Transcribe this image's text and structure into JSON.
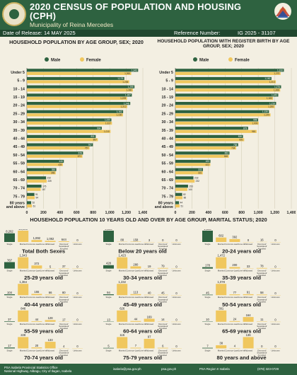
{
  "header": {
    "title": "2020 CENSUS OF POPULATION AND HOUSING (CPH)",
    "subtitle": "Municipality of Reina Mercedes",
    "release": "Date of Release: 14 MAY 2025",
    "ref_label": "Reference Number:",
    "ref_number": "IG 2025 - 31107"
  },
  "colors": {
    "male": "#2e6240",
    "female": "#f0c75e",
    "grid": "#cfc8b0",
    "header": "#2e6240"
  },
  "icons": {
    "left_logo": "psa-seal-icon",
    "right_logo": "bagong-pilipinas-logo-icon"
  },
  "chart_data": [
    {
      "type": "bar",
      "title": "HOUSEHOLD POPULATION BY AGE GROUP, SEX; 2020",
      "legend": [
        "Male",
        "Female"
      ],
      "legend_position": "top",
      "categories": [
        "Under 5",
        "5 - 9",
        "10 - 14",
        "15 - 19",
        "20 - 24",
        "25 - 29",
        "30 - 34",
        "35 - 39",
        "40 - 44",
        "45 - 49",
        "50 - 54",
        "55 - 59",
        "60 - 64",
        "65 - 69",
        "70 - 74",
        "75 - 79",
        "80 years and above"
      ],
      "series": [
        {
          "name": "Male",
          "values": [
            1343,
            1176,
            1299,
            1267,
            1248,
            1162,
            1020,
            904,
            831,
            797,
            678,
            446,
            355,
            232,
            176,
            91,
            52
          ]
        },
        {
          "name": "Female",
          "values": [
            1260,
            1236,
            1280,
            1209,
            1212,
            1160,
            1027,
            1010,
            857,
            757,
            671,
            435,
            348,
            239,
            167,
            94,
            61
          ]
        }
      ],
      "xlim": [
        0,
        1400
      ],
      "xticks": [
        0,
        200,
        400,
        600,
        800,
        1000,
        1200,
        1400
      ],
      "grid": true
    },
    {
      "type": "bar",
      "title": "HOUSEHOLD POPULATION WITH REGISTER BIRTH BY AGE GROUP, SEX; 2020",
      "legend": [
        "Male",
        "Female"
      ],
      "legend_position": "top",
      "categories": [
        "Under 5",
        "5 - 9",
        "10 - 14",
        "15 - 19",
        "20 - 24",
        "25 - 29",
        "30 - 34",
        "35 - 39",
        "40 - 44",
        "45 - 49",
        "50 - 54",
        "55 - 59",
        "60 - 64",
        "65 - 69",
        "70 - 74",
        "75 - 79",
        "80 years and above"
      ],
      "series": [
        {
          "name": "Male",
          "values": [
            1310,
            1160,
            1276,
            1242,
            1216,
            1130,
            998,
            878,
            816,
            758,
            653,
            423,
            333,
            218,
            153,
            82,
            44
          ]
        },
        {
          "name": "Female",
          "values": [
            1270,
            1213,
            1266,
            1180,
            1200,
            1149,
            1006,
            981,
            831,
            734,
            646,
            422,
            331,
            232,
            144,
            86,
            51
          ]
        }
      ],
      "xlim": [
        0,
        1400
      ],
      "xticks": [
        0,
        200,
        400,
        600,
        800,
        1000,
        1200,
        1400
      ],
      "grid": true
    },
    {
      "type": "bar",
      "title": "HOUSEHOLD POPULATION 10 YEARS OLD AND OVER BY AGE GROUP, MARITAL STATUS; 2020",
      "categories": [
        "Single",
        "Married",
        "Common-Law/Live-in",
        "Widowed",
        "Divorced/ Separated/ Annulled",
        "Unknown"
      ],
      "groups": [
        {
          "label": "Total Both Sexes",
          "values": [
            8262,
            10809,
            1892,
            1082,
            644,
            0
          ]
        },
        {
          "label": "Below 20 years old",
          "values": [
            5039,
            88,
            158,
            3,
            0,
            0
          ]
        },
        {
          "label": "20-24 years old",
          "values": [
            1530,
            602,
            392,
            0,
            16,
            0
          ]
        },
        {
          "label": "25-29 years old",
          "values": [
            767,
            1343,
            372,
            5,
            37,
            0
          ]
        },
        {
          "label": "30-34 years old",
          "values": [
            428,
            1423,
            280,
            19,
            79,
            0
          ]
        },
        {
          "label": "35-39 years old",
          "values": [
            178,
            1472,
            200,
            33,
            78,
            0
          ]
        },
        {
          "label": "40-44 years old",
          "values": [
            104,
            1364,
            155,
            66,
            80,
            0
          ]
        },
        {
          "label": "45-49 years old",
          "values": [
            94,
            1232,
            113,
            40,
            45,
            0
          ]
        },
        {
          "label": "50-54 years old",
          "values": [
            45,
            1078,
            77,
            91,
            58,
            0
          ]
        },
        {
          "label": "55-59 years old",
          "values": [
            37,
            846,
            44,
            128,
            17,
            0
          ]
        },
        {
          "label": "60-64 years old",
          "values": [
            13,
            626,
            44,
            169,
            14,
            0
          ]
        },
        {
          "label": "65-69 years old",
          "values": [
            10,
            391,
            24,
            164,
            11,
            0
          ]
        },
        {
          "label": "70-74 years old",
          "values": [
            17,
            228,
            20,
            133,
            4,
            0
          ]
        },
        {
          "label": "75-79 years old",
          "values": [
            5,
            115,
            7,
            97,
            6,
            0
          ]
        },
        {
          "label": "80 years and above",
          "values": [
            7,
            38,
            4,
            136,
            0,
            0
          ]
        }
      ]
    }
  ],
  "footer": {
    "org1": "PSA Isabela Provincial Statistics Office",
    "org2": "National Highway, Alibagu, City of Ilagan, Isabela",
    "email": "isabela@psa.gov.ph",
    "web": "psa.gov.ph",
    "fb": "PSA Region II Isabela",
    "phone": "(078) 323-0729"
  }
}
